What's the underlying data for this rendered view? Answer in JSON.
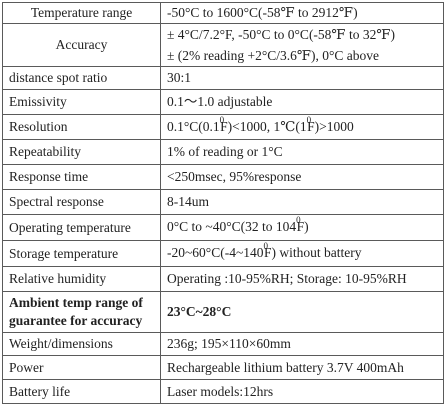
{
  "rows": [
    {
      "label": "Temperature range",
      "value": "-50°C to 1600°C(-58℉ to 2912℉)"
    },
    {
      "label": "Accuracy",
      "value_lines": [
        "± 4°C/7.2°F, -50°C to 0°C(-58℉ to 32℉)",
        "± (2% reading +2°C/3.6℉),   0°C above"
      ]
    },
    {
      "label": "distance spot ratio",
      "value": "30:1"
    },
    {
      "label": "Emissivity",
      "value": "0.1～1.0 adjustable"
    },
    {
      "label": "Resolution",
      "value_pre": "0.1°C(0.1",
      "value_sup1": "0",
      "value_mid": "F)<1000,        1℃(1",
      "value_sup2": "0",
      "value_post": "F)>1000"
    },
    {
      "label": "Repeatability",
      "value": "1% of reading or 1°C"
    },
    {
      "label": "Response time",
      "value": "<250msec, 95%response"
    },
    {
      "label": "Spectral response",
      "value": "8-14um"
    },
    {
      "label": "Operating temperature",
      "value_pre": "0°C to ~40°C(32 to 104",
      "value_sup": "0",
      "value_post": "F)"
    },
    {
      "label": "Storage temperature",
      "value_pre": "-20~60°C(-4~140",
      "value_sup": "0",
      "value_post": "F) without battery"
    },
    {
      "label": "Relative humidity",
      "value": "Operating :10-95%RH; Storage: 10-95%RH"
    },
    {
      "label": "Ambient temp range of guarantee for accuracy",
      "value": "23°C~28°C"
    },
    {
      "label": "Weight/dimensions",
      "value": "236g;  195×110×60mm"
    },
    {
      "label": "Power",
      "value": "Rechargeable lithium battery 3.7V 400mAh"
    },
    {
      "label": "Battery life",
      "value": "Laser models:12hrs"
    }
  ]
}
